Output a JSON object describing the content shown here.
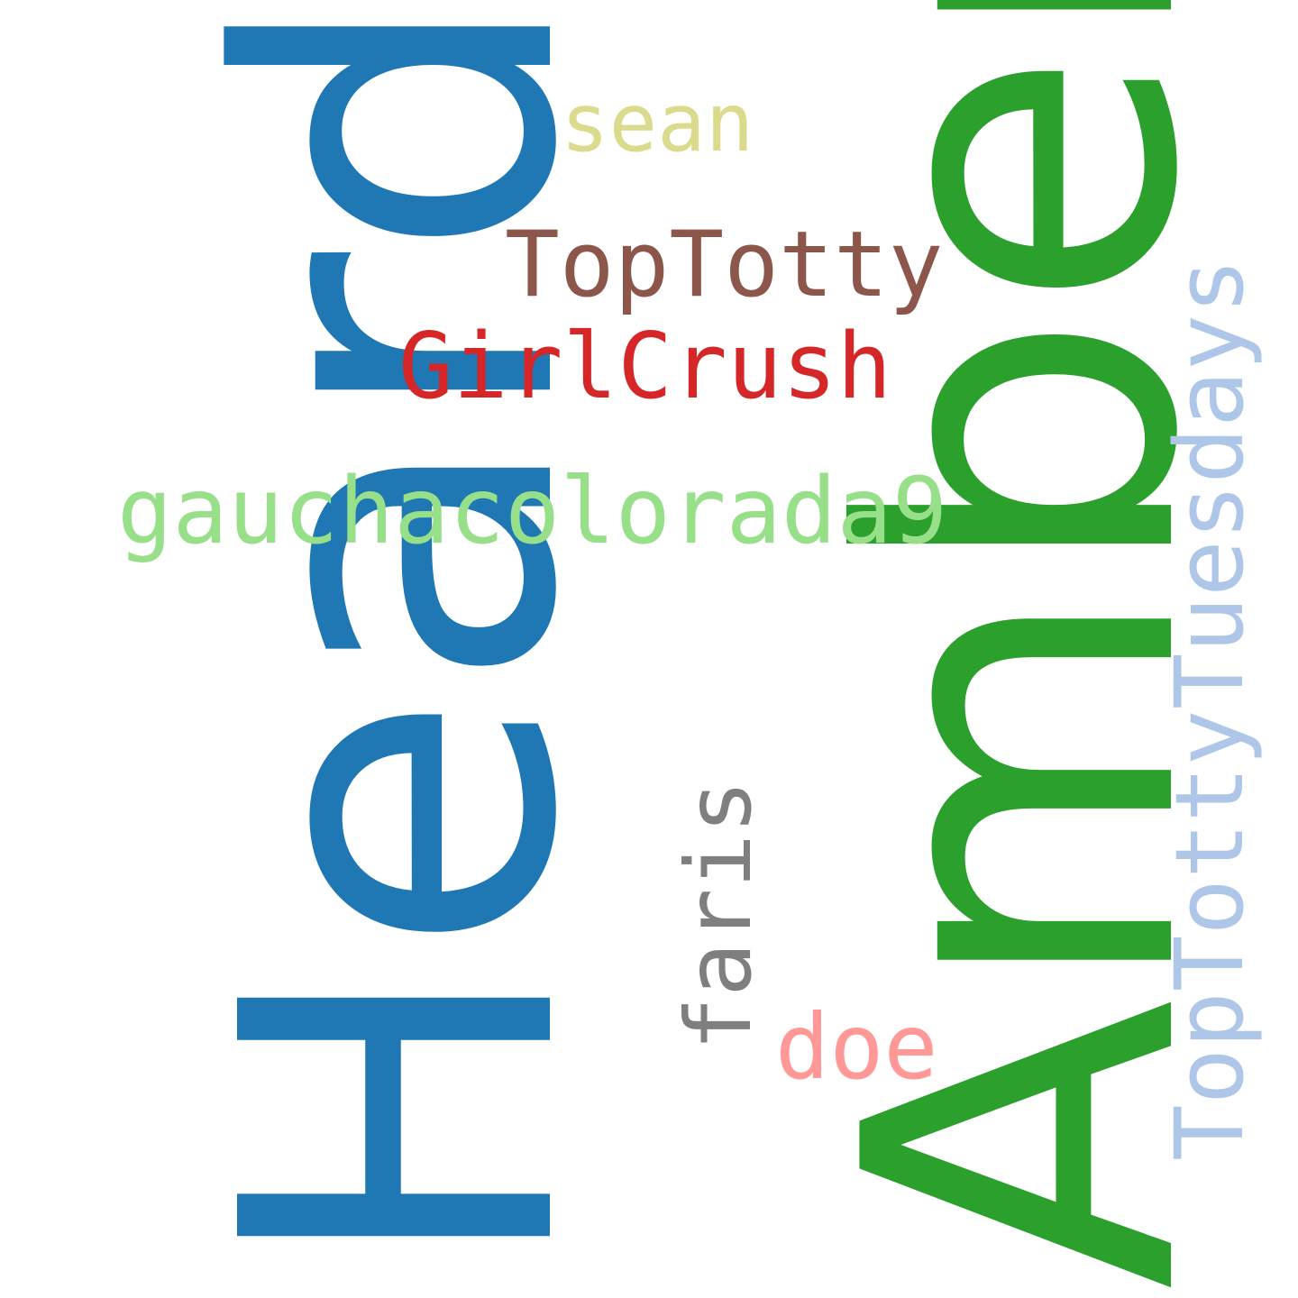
{
  "words": [
    {
      "id": "heard",
      "text": "Heard",
      "color": "#1f77b4",
      "orientation": "vertical"
    },
    {
      "id": "amber",
      "text": "Amber",
      "color": "#2ca02c",
      "orientation": "vertical"
    },
    {
      "id": "toptottytuesdays",
      "text": "TopTottyTuesdays",
      "color": "#aec7e8",
      "orientation": "vertical"
    },
    {
      "id": "faris",
      "text": "faris",
      "color": "#7f7f7f",
      "orientation": "vertical"
    },
    {
      "id": "sean",
      "text": "sean",
      "color": "#dbdb8d",
      "orientation": "horizontal"
    },
    {
      "id": "toptotty",
      "text": "TopTotty",
      "color": "#8c564b",
      "orientation": "horizontal"
    },
    {
      "id": "girlcrush",
      "text": "GirlCrush",
      "color": "#d62728",
      "orientation": "horizontal"
    },
    {
      "id": "gauchacolorada9",
      "text": "gauchacolorada9",
      "color": "#98df8a",
      "orientation": "horizontal"
    },
    {
      "id": "doe",
      "text": "doe",
      "color": "#ff9896",
      "orientation": "horizontal"
    }
  ]
}
